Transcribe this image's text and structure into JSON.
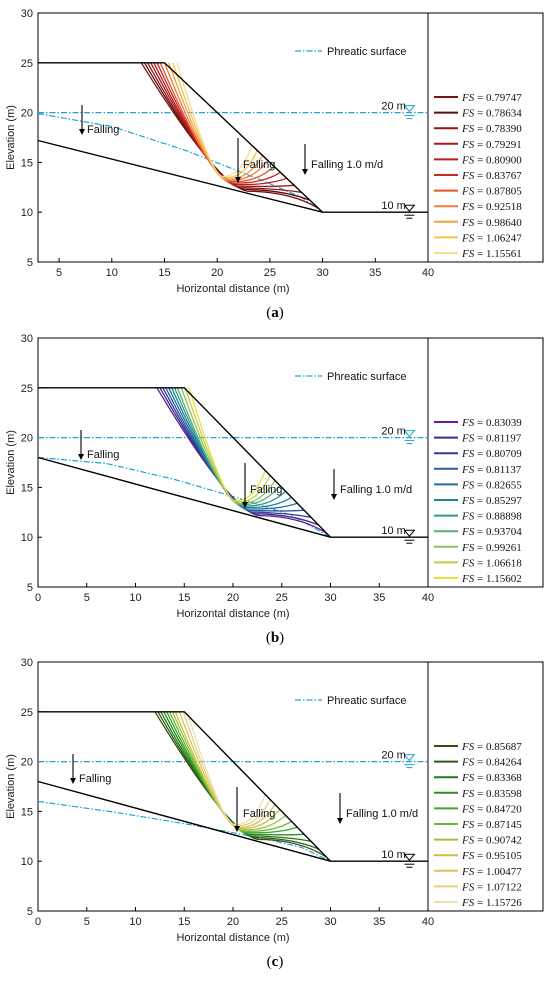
{
  "chart_data": [
    {
      "panel": "(a)",
      "caption_letter": "a",
      "type": "line",
      "xlabel": "Horizontal distance (m)",
      "ylabel": "Elevation (m)",
      "xlim": [
        3,
        40
      ],
      "ylim": [
        5,
        30
      ],
      "xticks": [
        5,
        10,
        15,
        20,
        25,
        30,
        35,
        40
      ],
      "yticks": [
        5,
        10,
        15,
        20,
        25,
        30
      ],
      "phreatic_label": "Phreatic surface",
      "water_label_20": "20 m",
      "water_label_10": "10 m",
      "falling_labels": [
        "Falling",
        "Falling",
        "Falling 1.0 m/d"
      ],
      "fs_values": [
        "0.79747",
        "0.78634",
        "0.78390",
        "0.79291",
        "0.80900",
        "0.83767",
        "0.87805",
        "0.92518",
        "0.98640",
        "1.06247",
        "1.15561"
      ],
      "colors": [
        "#7a1212",
        "#5a0d0d",
        "#8b1a1a",
        "#a31818",
        "#b81c1c",
        "#cc2a20",
        "#e3572f",
        "#ef7d38",
        "#f3a03c",
        "#f6c24a",
        "#f8dc8a"
      ],
      "slope": {
        "crest": [
          [
            3,
            25
          ],
          [
            15,
            25
          ]
        ],
        "face": [
          [
            15,
            25
          ],
          [
            30,
            10
          ]
        ],
        "toe": [
          [
            30,
            10
          ],
          [
            40,
            10
          ]
        ],
        "base": [
          [
            3,
            17.2
          ],
          [
            30,
            10
          ]
        ]
      },
      "phreatic_initial": [
        [
          3,
          20
        ],
        [
          40,
          20
        ]
      ],
      "phreatic_falling": [
        [
          3,
          19.9
        ],
        [
          10,
          18.6
        ],
        [
          17,
          16.2
        ],
        [
          24,
          13.3
        ],
        [
          28,
          11.5
        ],
        [
          30,
          10
        ]
      ],
      "slip_start_x": [
        12.8,
        13.1,
        13.4,
        13.7,
        14.0,
        14.3,
        14.6,
        15.0,
        15.4,
        15.8,
        16.2
      ],
      "slip_exit_x": [
        29.6,
        28.8,
        28.0,
        27.3,
        26.6,
        26.0,
        25.4,
        24.8,
        24.3,
        23.8,
        23.3
      ],
      "slip_depth": [
        0.4,
        0.7,
        1.0,
        1.3,
        1.6,
        1.9,
        2.2,
        2.5,
        2.8,
        3.2,
        3.6
      ]
    },
    {
      "panel": "(b)",
      "caption_letter": "b",
      "type": "line",
      "xlabel": "Horizontal distance (m)",
      "ylabel": "Elevation (m)",
      "xlim": [
        0,
        40
      ],
      "ylim": [
        5,
        30
      ],
      "xticks": [
        0,
        5,
        10,
        15,
        20,
        25,
        30,
        35,
        40
      ],
      "yticks": [
        5,
        10,
        15,
        20,
        25,
        30
      ],
      "phreatic_label": "Phreatic surface",
      "water_label_20": "20 m",
      "water_label_10": "10 m",
      "falling_labels": [
        "Falling",
        "Falling",
        "Falling 1.0 m/d"
      ],
      "fs_values": [
        "0.83039",
        "0.81197",
        "0.80709",
        "0.81137",
        "0.82655",
        "0.85297",
        "0.88898",
        "0.93704",
        "0.99261",
        "1.06618",
        "1.15602"
      ],
      "colors": [
        "#6a1b9a",
        "#3b2a8c",
        "#2e3f94",
        "#2a5aa0",
        "#23709f",
        "#1f8599",
        "#2f9a8a",
        "#5aac78",
        "#8cbf5e",
        "#bccf45",
        "#e6df3a"
      ],
      "slope": {
        "crest": [
          [
            0,
            25
          ],
          [
            15,
            25
          ]
        ],
        "face": [
          [
            15,
            25
          ],
          [
            30,
            10
          ]
        ],
        "toe": [
          [
            30,
            10
          ],
          [
            40,
            10
          ]
        ],
        "base": [
          [
            0,
            18
          ],
          [
            30,
            10
          ]
        ]
      },
      "phreatic_initial": [
        [
          0,
          20
        ],
        [
          40,
          20
        ]
      ],
      "phreatic_falling": [
        [
          0,
          18
        ],
        [
          7,
          17.4
        ],
        [
          14,
          15.8
        ],
        [
          21,
          13.8
        ],
        [
          26,
          12.2
        ],
        [
          30,
          10
        ]
      ],
      "slip_start_x": [
        12.2,
        12.5,
        12.8,
        13.1,
        13.4,
        13.7,
        14.0,
        14.3,
        14.7,
        15.1,
        15.5
      ],
      "slip_exit_x": [
        29.6,
        28.8,
        28.0,
        27.3,
        26.6,
        26.0,
        25.4,
        24.8,
        24.3,
        23.8,
        23.3
      ],
      "slip_depth": [
        0.4,
        0.7,
        1.0,
        1.3,
        1.6,
        1.9,
        2.2,
        2.5,
        2.8,
        3.2,
        3.6
      ]
    },
    {
      "panel": "(c)",
      "caption_letter": "c",
      "type": "line",
      "xlabel": "Horizontal distance (m)",
      "ylabel": "Elevation (m)",
      "xlim": [
        0,
        40
      ],
      "ylim": [
        5,
        30
      ],
      "xticks": [
        0,
        5,
        10,
        15,
        20,
        25,
        30,
        35,
        40
      ],
      "yticks": [
        5,
        10,
        15,
        20,
        25,
        30
      ],
      "phreatic_label": "Phreatic surface",
      "water_label_20": "20 m",
      "water_label_10": "10 m",
      "falling_labels": [
        "Falling",
        "Falling",
        "Falling 1.0 m/d"
      ],
      "fs_values": [
        "0.85687",
        "0.84264",
        "0.83368",
        "0.83598",
        "0.84720",
        "0.87145",
        "0.90742",
        "0.95105",
        "1.00477",
        "1.07122",
        "1.15726"
      ],
      "colors": [
        "#3a4a14",
        "#2f5a12",
        "#1f7a1a",
        "#2a8f22",
        "#3ea62c",
        "#68b53a",
        "#9cc23e",
        "#c9c23a",
        "#d8c25a",
        "#e4d27e",
        "#efe0b0"
      ],
      "slope": {
        "crest": [
          [
            0,
            25
          ],
          [
            15,
            25
          ]
        ],
        "face": [
          [
            15,
            25
          ],
          [
            30,
            10
          ]
        ],
        "toe": [
          [
            30,
            10
          ],
          [
            40,
            10
          ]
        ],
        "base": [
          [
            0,
            18
          ],
          [
            30,
            10
          ]
        ]
      },
      "phreatic_initial": [
        [
          0,
          20
        ],
        [
          40,
          20
        ]
      ],
      "phreatic_falling": [
        [
          0,
          16
        ],
        [
          8,
          14.9
        ],
        [
          16,
          13.6
        ],
        [
          23,
          12.3
        ],
        [
          27,
          11.4
        ],
        [
          30,
          10
        ]
      ],
      "slip_start_x": [
        12.0,
        12.3,
        12.6,
        12.9,
        13.2,
        13.5,
        13.8,
        14.1,
        14.5,
        14.9,
        15.3
      ],
      "slip_exit_x": [
        29.6,
        28.8,
        28.0,
        27.3,
        26.6,
        26.0,
        25.4,
        24.8,
        24.3,
        23.8,
        23.3
      ],
      "slip_depth": [
        0.4,
        0.7,
        1.0,
        1.3,
        1.6,
        1.9,
        2.2,
        2.5,
        2.8,
        3.2,
        3.6
      ]
    }
  ]
}
